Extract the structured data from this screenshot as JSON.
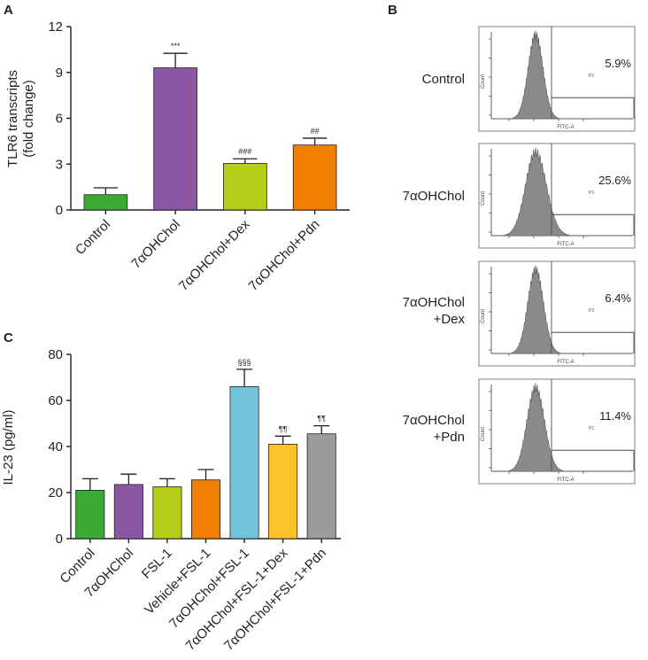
{
  "colors": {
    "green": "#3aaa35",
    "purple": "#8c56a2",
    "lime": "#b5cc18",
    "orange": "#f07f00",
    "cyan": "#72c4dc",
    "yellow": "#fcc22b",
    "gray": "#9b9b9b",
    "axis": "#231f20",
    "histogram": "#8a8a8a"
  },
  "panels": {
    "a_letter": "A",
    "b_letter": "B",
    "c_letter": "C"
  },
  "chart_data": [
    {
      "id": "A",
      "type": "bar",
      "ylabel_line1": "TLR6 transcripts",
      "ylabel_line2": "(fold change)",
      "ylim": [
        0,
        12
      ],
      "yticks": [
        0,
        3,
        6,
        9,
        12
      ],
      "categories": [
        "Control",
        "7αOHChol",
        "7αOHChol+Dex",
        "7αOHChol+Pdn"
      ],
      "values": [
        1.0,
        9.3,
        3.05,
        4.25
      ],
      "errors": [
        0.45,
        0.95,
        0.3,
        0.45
      ],
      "annotations": [
        "",
        "***",
        "###",
        "##"
      ],
      "colors": [
        "#3aaa35",
        "#8c56a2",
        "#b5cc18",
        "#f07f00"
      ]
    },
    {
      "id": "C",
      "type": "bar",
      "ylabel": "IL-23 (pg/ml)",
      "ylim": [
        0,
        80
      ],
      "yticks": [
        0,
        20,
        40,
        60,
        80
      ],
      "categories": [
        "Control",
        "7αOHChol",
        "FSL-1",
        "Vehicle+FSL-1",
        "7αOHChol+FSL-1",
        "7αOHChol+FSL-1+Dex",
        "7αOHChol+FSL-1+Pdn"
      ],
      "values": [
        21,
        23.5,
        22.5,
        25.5,
        66,
        41,
        45.5
      ],
      "errors": [
        5,
        4.5,
        3.5,
        4.5,
        7.5,
        3.5,
        3.5
      ],
      "annotations": [
        "",
        "",
        "",
        "",
        "§§§",
        "¶¶",
        "¶¶"
      ],
      "colors": [
        "#3aaa35",
        "#8c56a2",
        "#b5cc18",
        "#f07f00",
        "#72c4dc",
        "#fcc22b",
        "#9b9b9b"
      ]
    },
    {
      "id": "B",
      "type": "histogram",
      "gate_label": "P2",
      "x_axis_label": "FITC-A",
      "y_axis_label": "Count",
      "samples": [
        {
          "name_line1": "Control",
          "name_line2": "",
          "percent": "5.9%",
          "spread": 1.0
        },
        {
          "name_line1": "7αOHChol",
          "name_line2": "",
          "percent": "25.6%",
          "spread": 1.35
        },
        {
          "name_line1": "7αOHChol",
          "name_line2": "+Dex",
          "percent": "6.4%",
          "spread": 1.05
        },
        {
          "name_line1": "7αOHChol",
          "name_line2": "+Pdn",
          "percent": "11.4%",
          "spread": 1.15
        }
      ]
    }
  ]
}
